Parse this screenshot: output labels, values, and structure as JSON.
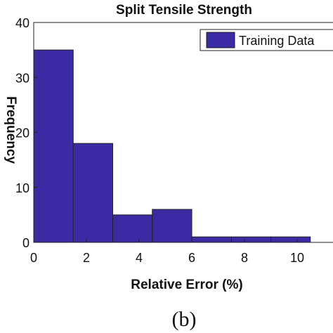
{
  "chart_data": {
    "type": "bar",
    "title": "Split Tensile Strength",
    "xlabel": "Relative Error (%)",
    "ylabel": "Frequency",
    "bins": [
      {
        "start": 0.0,
        "end": 1.5,
        "value": 35
      },
      {
        "start": 1.5,
        "end": 3.0,
        "value": 18
      },
      {
        "start": 3.0,
        "end": 4.5,
        "value": 5
      },
      {
        "start": 4.5,
        "end": 6.0,
        "value": 6
      },
      {
        "start": 6.0,
        "end": 7.5,
        "value": 1
      },
      {
        "start": 7.5,
        "end": 9.0,
        "value": 1
      },
      {
        "start": 9.0,
        "end": 10.5,
        "value": 1
      }
    ],
    "series": [
      {
        "name": "Training Data",
        "color": "#3a2aa3"
      }
    ],
    "xlim": [
      0,
      10.8
    ],
    "ylim": [
      0,
      40
    ],
    "x_ticks": [
      "0",
      "2",
      "4",
      "6",
      "8",
      "10"
    ],
    "x_tick_values": [
      0,
      2,
      4,
      6,
      8,
      10
    ],
    "y_ticks": [
      "0",
      "10",
      "20",
      "30",
      "40"
    ],
    "y_tick_values": [
      0,
      10,
      20,
      30,
      40
    ],
    "grid": false,
    "legend_position": "top-right"
  },
  "caption": "(b)"
}
